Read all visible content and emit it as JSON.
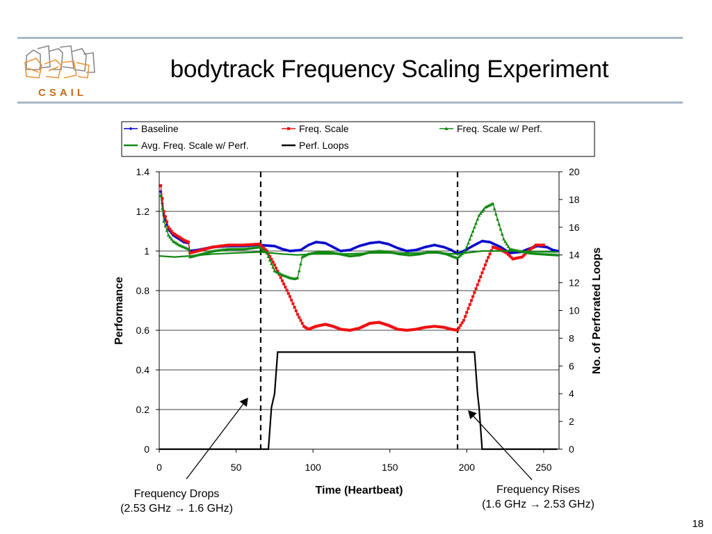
{
  "slide": {
    "title": "bodytrack Frequency Scaling Experiment",
    "page_number": "18",
    "logo_text": "CSAIL"
  },
  "annotations": {
    "drop_line1": "Frequency Drops",
    "drop_line2": "(2.53 GHz → 1.6 GHz)",
    "rise_line1": "Frequency Rises",
    "rise_line2": "(1.6 GHz → 2.53 GHz)"
  },
  "chart_data": {
    "type": "line",
    "xlabel": "Time (Heartbeat)",
    "ylabel": "Performance",
    "y2label": "No. of Perforated Loops",
    "xlim": [
      0,
      260
    ],
    "xticks": [
      0,
      50,
      100,
      150,
      200,
      250
    ],
    "ylim": [
      0,
      1.4
    ],
    "yticks": [
      "0",
      "0.2",
      "0.4",
      "0.6",
      "0.8",
      "1",
      "1.2",
      "1.4"
    ],
    "y2lim": [
      0,
      20
    ],
    "y2ticks": [
      "0",
      "2",
      "4",
      "6",
      "8",
      "10",
      "12",
      "14",
      "16",
      "18",
      "20"
    ],
    "grid": "horizontal",
    "legend": "top",
    "vlines": [
      66,
      194
    ],
    "series": [
      {
        "name": "Baseline",
        "color": "#0000cc",
        "marker": "diamond",
        "axis": "left",
        "points": [
          [
            1,
            1.3
          ],
          [
            3,
            1.18
          ],
          [
            6,
            1.11
          ],
          [
            9,
            1.08
          ],
          [
            13,
            1.06
          ],
          [
            16,
            1.045
          ],
          [
            19,
            1.04
          ],
          [
            20,
            1.0
          ],
          [
            25,
            1.005
          ],
          [
            35,
            1.02
          ],
          [
            45,
            1.025
          ],
          [
            55,
            1.025
          ],
          [
            65,
            1.03
          ],
          [
            75,
            1.025
          ],
          [
            80,
            1.01
          ],
          [
            85,
            1.0
          ],
          [
            92,
            1.005
          ],
          [
            97,
            1.03
          ],
          [
            102,
            1.045
          ],
          [
            108,
            1.04
          ],
          [
            113,
            1.02
          ],
          [
            118,
            1.0
          ],
          [
            124,
            1.005
          ],
          [
            130,
            1.025
          ],
          [
            137,
            1.04
          ],
          [
            143,
            1.045
          ],
          [
            149,
            1.035
          ],
          [
            155,
            1.015
          ],
          [
            161,
            1.0
          ],
          [
            167,
            1.005
          ],
          [
            173,
            1.02
          ],
          [
            179,
            1.03
          ],
          [
            185,
            1.02
          ],
          [
            190,
            1.005
          ],
          [
            194,
            0.985
          ],
          [
            198,
            1.0
          ],
          [
            205,
            1.03
          ],
          [
            210,
            1.05
          ],
          [
            215,
            1.045
          ],
          [
            222,
            1.02
          ],
          [
            228,
            0.99
          ],
          [
            235,
            0.995
          ],
          [
            240,
            1.01
          ],
          [
            246,
            1.025
          ],
          [
            252,
            1.02
          ],
          [
            256,
            1.005
          ],
          [
            259,
            1.0
          ]
        ]
      },
      {
        "name": "Freq. Scale",
        "color": "#ee1111",
        "marker": "square",
        "axis": "left",
        "points": [
          [
            1,
            1.33
          ],
          [
            3,
            1.2
          ],
          [
            6,
            1.12
          ],
          [
            9,
            1.09
          ],
          [
            13,
            1.07
          ],
          [
            16,
            1.055
          ],
          [
            19,
            1.045
          ],
          [
            20,
            0.99
          ],
          [
            25,
            1.0
          ],
          [
            35,
            1.02
          ],
          [
            45,
            1.03
          ],
          [
            55,
            1.03
          ],
          [
            65,
            1.035
          ],
          [
            70,
            1.0
          ],
          [
            75,
            0.93
          ],
          [
            80,
            0.85
          ],
          [
            85,
            0.77
          ],
          [
            90,
            0.68
          ],
          [
            94,
            0.62
          ],
          [
            97,
            0.605
          ],
          [
            102,
            0.62
          ],
          [
            108,
            0.63
          ],
          [
            113,
            0.62
          ],
          [
            118,
            0.605
          ],
          [
            124,
            0.6
          ],
          [
            130,
            0.61
          ],
          [
            137,
            0.635
          ],
          [
            143,
            0.64
          ],
          [
            149,
            0.625
          ],
          [
            155,
            0.605
          ],
          [
            161,
            0.6
          ],
          [
            167,
            0.605
          ],
          [
            173,
            0.615
          ],
          [
            179,
            0.62
          ],
          [
            185,
            0.615
          ],
          [
            190,
            0.605
          ],
          [
            194,
            0.6
          ],
          [
            198,
            0.65
          ],
          [
            203,
            0.75
          ],
          [
            208,
            0.85
          ],
          [
            213,
            0.95
          ],
          [
            217,
            1.02
          ],
          [
            221,
            1.01
          ],
          [
            226,
            0.99
          ],
          [
            230,
            0.96
          ],
          [
            236,
            0.97
          ],
          [
            240,
            1.0
          ],
          [
            245,
            1.03
          ],
          [
            250,
            1.03
          ]
        ]
      },
      {
        "name": "Freq. Scale w/ Perf.",
        "color": "#118811",
        "marker": "triangle",
        "axis": "left",
        "points": [
          [
            1,
            1.28
          ],
          [
            3,
            1.15
          ],
          [
            6,
            1.08
          ],
          [
            9,
            1.05
          ],
          [
            13,
            1.03
          ],
          [
            16,
            1.02
          ],
          [
            19,
            1.01
          ],
          [
            20,
            0.97
          ],
          [
            25,
            0.98
          ],
          [
            35,
            1.0
          ],
          [
            45,
            1.01
          ],
          [
            55,
            1.01
          ],
          [
            65,
            1.02
          ],
          [
            70,
            0.99
          ],
          [
            75,
            0.9
          ],
          [
            80,
            0.88
          ],
          [
            85,
            0.865
          ],
          [
            88,
            0.86
          ],
          [
            90,
            0.865
          ],
          [
            93,
            0.97
          ],
          [
            97,
            0.985
          ],
          [
            103,
            0.995
          ],
          [
            110,
            0.995
          ],
          [
            118,
            0.985
          ],
          [
            124,
            0.975
          ],
          [
            130,
            0.98
          ],
          [
            137,
            0.995
          ],
          [
            143,
            1.0
          ],
          [
            150,
            0.995
          ],
          [
            157,
            0.985
          ],
          [
            163,
            0.98
          ],
          [
            169,
            0.985
          ],
          [
            175,
            0.995
          ],
          [
            181,
            0.995
          ],
          [
            187,
            0.985
          ],
          [
            192,
            0.97
          ],
          [
            194,
            0.965
          ],
          [
            199,
            1.0
          ],
          [
            204,
            1.1
          ],
          [
            208,
            1.18
          ],
          [
            212,
            1.22
          ],
          [
            217,
            1.24
          ],
          [
            220,
            1.16
          ],
          [
            224,
            1.06
          ],
          [
            228,
            1.01
          ],
          [
            234,
            1.0
          ],
          [
            241,
            0.99
          ],
          [
            249,
            0.985
          ],
          [
            259,
            0.98
          ]
        ]
      },
      {
        "name": "Avg. Freq. Scale w/ Perf.",
        "color": "#118811",
        "marker": "none",
        "axis": "left",
        "points": [
          [
            0,
            0.975
          ],
          [
            10,
            0.97
          ],
          [
            20,
            0.975
          ],
          [
            35,
            0.985
          ],
          [
            50,
            0.99
          ],
          [
            66,
            0.995
          ],
          [
            80,
            0.985
          ],
          [
            90,
            0.98
          ],
          [
            100,
            0.985
          ],
          [
            120,
            0.985
          ],
          [
            140,
            0.99
          ],
          [
            160,
            0.99
          ],
          [
            180,
            0.99
          ],
          [
            194,
            0.985
          ],
          [
            210,
            1.0
          ],
          [
            230,
            1.0
          ],
          [
            259,
            0.995
          ]
        ]
      },
      {
        "name": "Perf. Loops",
        "color": "#000000",
        "marker": "none",
        "axis": "right",
        "points": [
          [
            0,
            0
          ],
          [
            71,
            0
          ],
          [
            73,
            3
          ],
          [
            75,
            4
          ],
          [
            77,
            7
          ],
          [
            205,
            7
          ],
          [
            207,
            4
          ],
          [
            208,
            3
          ],
          [
            210,
            0
          ],
          [
            259,
            0
          ]
        ]
      }
    ]
  }
}
